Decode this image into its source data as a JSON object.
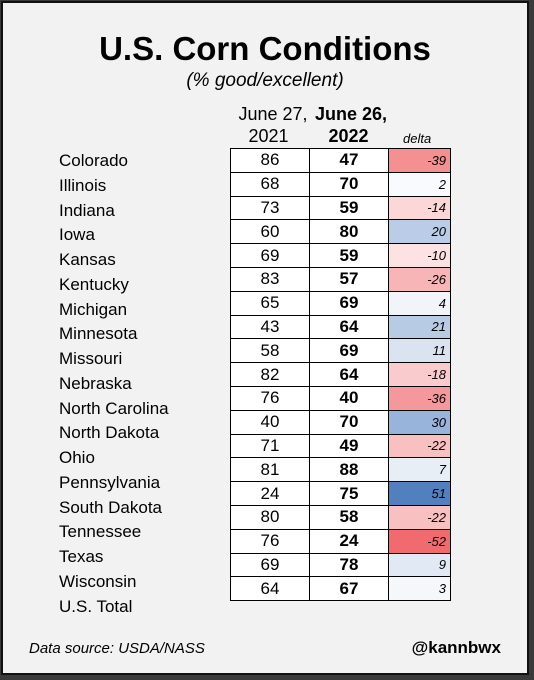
{
  "title": "U.S. Corn Conditions",
  "subtitle": "(% good/excellent)",
  "columns": {
    "prev_date": "June 27,",
    "prev_year": "2021",
    "curr_date": "June 26,",
    "curr_year": "2022",
    "delta": "delta"
  },
  "footer": {
    "source": "Data source: USDA/NASS",
    "handle": "@kannbwx"
  },
  "chart_data": {
    "type": "table",
    "title": "U.S. Corn Conditions",
    "subtitle": "(% good/excellent)",
    "columns": [
      "June 27, 2021",
      "June 26, 2022",
      "delta"
    ],
    "rows": [
      {
        "state": "Colorado",
        "y2021": 86,
        "y2022": 47,
        "delta": -39
      },
      {
        "state": "Illinois",
        "y2021": 68,
        "y2022": 70,
        "delta": 2
      },
      {
        "state": "Indiana",
        "y2021": 73,
        "y2022": 59,
        "delta": -14
      },
      {
        "state": "Iowa",
        "y2021": 60,
        "y2022": 80,
        "delta": 20
      },
      {
        "state": "Kansas",
        "y2021": 69,
        "y2022": 59,
        "delta": -10
      },
      {
        "state": "Kentucky",
        "y2021": 83,
        "y2022": 57,
        "delta": -26
      },
      {
        "state": "Michigan",
        "y2021": 65,
        "y2022": 69,
        "delta": 4
      },
      {
        "state": "Minnesota",
        "y2021": 43,
        "y2022": 64,
        "delta": 21
      },
      {
        "state": "Missouri",
        "y2021": 58,
        "y2022": 69,
        "delta": 11
      },
      {
        "state": "Nebraska",
        "y2021": 82,
        "y2022": 64,
        "delta": -18
      },
      {
        "state": "North Carolina",
        "y2021": 76,
        "y2022": 40,
        "delta": -36
      },
      {
        "state": "North Dakota",
        "y2021": 40,
        "y2022": 70,
        "delta": 30
      },
      {
        "state": "Ohio",
        "y2021": 71,
        "y2022": 49,
        "delta": -22
      },
      {
        "state": "Pennsylvania",
        "y2021": 81,
        "y2022": 88,
        "delta": 7
      },
      {
        "state": "South Dakota",
        "y2021": 24,
        "y2022": 75,
        "delta": 51
      },
      {
        "state": "Tennessee",
        "y2021": 80,
        "y2022": 58,
        "delta": -22
      },
      {
        "state": "Texas",
        "y2021": 76,
        "y2022": 24,
        "delta": -52
      },
      {
        "state": "Wisconsin",
        "y2021": 69,
        "y2022": 78,
        "delta": 9
      },
      {
        "state": "U.S. Total",
        "y2021": 64,
        "y2022": 67,
        "delta": 3
      }
    ],
    "colors": {
      "negative_max": "#f06a6e",
      "positive_max": "#4f7dbe",
      "neutral": "#ffffff"
    }
  }
}
